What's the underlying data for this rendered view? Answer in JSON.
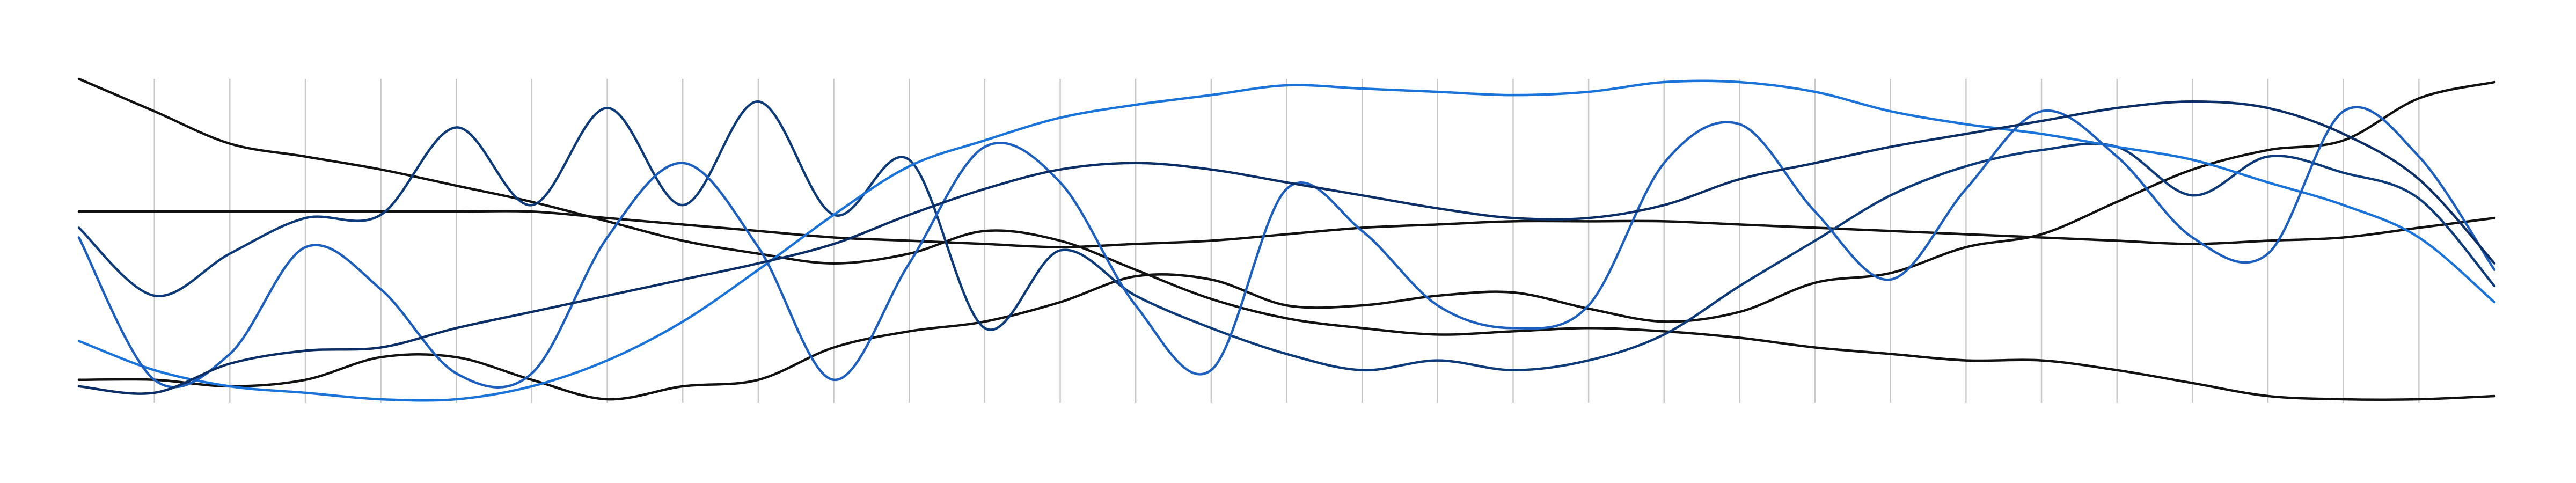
{
  "chart_data": {
    "type": "line",
    "x": [
      0,
      1,
      2,
      3,
      4,
      5,
      6,
      7,
      8,
      9,
      10,
      11,
      12,
      13,
      14,
      15,
      16,
      17,
      18,
      19,
      20,
      21,
      22,
      23,
      24,
      25,
      26,
      27,
      28,
      29,
      30,
      31,
      32
    ],
    "xlim": [
      0,
      32
    ],
    "xticks": [
      1,
      2,
      3,
      4,
      5,
      6,
      7,
      8,
      9,
      10,
      11,
      12,
      13,
      14,
      15,
      16,
      17,
      18,
      19,
      20,
      21,
      22,
      23,
      24,
      25,
      26,
      27,
      28,
      29,
      30,
      31
    ],
    "ylim": [
      0,
      100
    ],
    "grid": true,
    "series": [
      {
        "color": "#111111",
        "values": [
          100,
          90,
          80,
          76,
          72,
          67,
          62,
          56,
          50,
          46,
          43,
          46,
          53,
          50,
          41,
          32,
          26,
          23,
          21,
          22,
          23,
          22,
          20,
          17,
          15,
          13,
          13,
          10,
          6,
          2,
          1,
          1,
          2
        ]
      },
      {
        "color": "#111111",
        "values": [
          59,
          59,
          59,
          59,
          59,
          59,
          59,
          57,
          55,
          53,
          51,
          50,
          49,
          48,
          49,
          50,
          52,
          54,
          55,
          56,
          56,
          56,
          55,
          54,
          53,
          52,
          51,
          50,
          49,
          50,
          51,
          54,
          57
        ]
      },
      {
        "color": "#111111",
        "values": [
          7,
          7,
          5,
          7,
          14,
          14,
          7,
          1,
          5,
          7,
          17,
          22,
          25,
          31,
          39,
          38,
          30,
          30,
          33,
          34,
          29,
          25,
          28,
          37,
          40,
          48,
          52,
          62,
          72,
          78,
          81,
          94,
          99
        ]
      },
      {
        "color": "#0d3b7a",
        "values": [
          54,
          33,
          46,
          57,
          58,
          85,
          61,
          91,
          61,
          93,
          58,
          75,
          23,
          47,
          33,
          23,
          15,
          10,
          13,
          10,
          13,
          21,
          36,
          50,
          64,
          73,
          78,
          79,
          64,
          76,
          71,
          63,
          36
        ]
      },
      {
        "color": "#1a73d9",
        "values": [
          19,
          10,
          5,
          3,
          1,
          1,
          5,
          13,
          25,
          41,
          58,
          73,
          81,
          88,
          92,
          95,
          98,
          97,
          96,
          95,
          96,
          99,
          99,
          96,
          90,
          86,
          83,
          79,
          75,
          68,
          61,
          51,
          31
        ]
      },
      {
        "color": "#1c5fbf",
        "values": [
          51,
          7,
          15,
          48,
          35,
          9,
          9,
          51,
          74,
          48,
          7,
          43,
          79,
          68,
          30,
          10,
          66,
          53,
          30,
          23,
          30,
          74,
          86,
          59,
          38,
          66,
          90,
          76,
          51,
          46,
          90,
          76,
          41
        ]
      },
      {
        "color": "#0b2e66",
        "values": [
          5,
          3,
          12,
          16,
          17,
          23,
          28,
          33,
          38,
          43,
          49,
          58,
          66,
          72,
          74,
          72,
          68,
          64,
          60,
          57,
          57,
          61,
          69,
          74,
          79,
          83,
          87,
          91,
          93,
          91,
          83,
          69,
          43
        ]
      }
    ]
  }
}
